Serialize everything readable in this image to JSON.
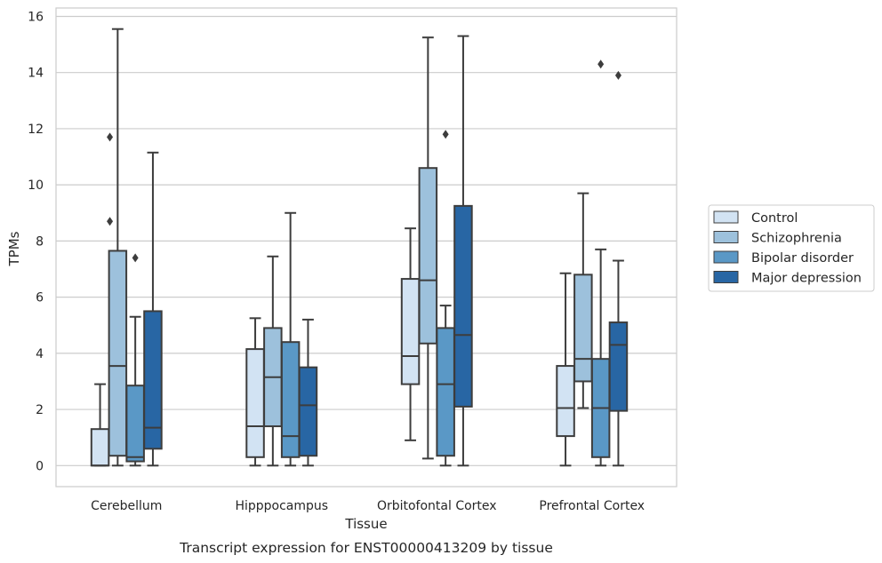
{
  "chart_data": {
    "type": "box",
    "caption": "Transcript expression for ENST00000413209 by tissue",
    "xlabel": "Tissue",
    "ylabel": "TPMs",
    "ylim": [
      -0.75,
      16.3
    ],
    "yticks": [
      0,
      2,
      4,
      6,
      8,
      10,
      12,
      14,
      16
    ],
    "grid": true,
    "legend_position": "right",
    "categories": [
      "Cerebellum",
      "Hipppocampus",
      "Orbitofontal Cortex",
      "Prefrontal Cortex"
    ],
    "series": [
      {
        "name": "Control",
        "color": "#d2e3f3",
        "boxes": [
          {
            "whisker_low": 0,
            "q1": 0,
            "median": 0,
            "q3": 1.3,
            "whisker_high": 2.9,
            "outliers": []
          },
          {
            "whisker_low": 0,
            "q1": 0.3,
            "median": 1.4,
            "q3": 4.15,
            "whisker_high": 5.25,
            "outliers": []
          },
          {
            "whisker_low": 0.9,
            "q1": 2.9,
            "median": 3.9,
            "q3": 6.65,
            "whisker_high": 8.45,
            "outliers": []
          },
          {
            "whisker_low": 0,
            "q1": 1.05,
            "median": 2.05,
            "q3": 3.55,
            "whisker_high": 6.85,
            "outliers": []
          }
        ]
      },
      {
        "name": "Schizophrenia",
        "color": "#9dc1dc",
        "boxes": [
          {
            "whisker_low": 0,
            "q1": 0.35,
            "median": 3.55,
            "q3": 7.65,
            "whisker_high": 15.55,
            "outliers": []
          },
          {
            "whisker_low": 0,
            "q1": 1.4,
            "median": 3.15,
            "q3": 4.9,
            "whisker_high": 7.45,
            "outliers": []
          },
          {
            "whisker_low": 0.25,
            "q1": 4.35,
            "median": 6.6,
            "q3": 10.6,
            "whisker_high": 15.25,
            "outliers": []
          },
          {
            "whisker_low": 2.05,
            "q1": 3.0,
            "median": 3.8,
            "q3": 6.8,
            "whisker_high": 9.7,
            "outliers": []
          }
        ]
      },
      {
        "name": "Bipolar disorder",
        "color": "#5a98c6",
        "boxes": [
          {
            "whisker_low": 0,
            "q1": 0.15,
            "median": 0.3,
            "q3": 2.85,
            "whisker_high": 5.3,
            "outliers": [
              7.4
            ]
          },
          {
            "whisker_low": 0,
            "q1": 0.3,
            "median": 1.05,
            "q3": 4.4,
            "whisker_high": 9.0,
            "outliers": []
          },
          {
            "whisker_low": 0,
            "q1": 0.35,
            "median": 2.9,
            "q3": 4.9,
            "whisker_high": 5.7,
            "outliers": [
              11.8
            ]
          },
          {
            "whisker_low": 0,
            "q1": 0.3,
            "median": 2.05,
            "q3": 3.8,
            "whisker_high": 7.7,
            "outliers": [
              14.3
            ]
          }
        ]
      },
      {
        "name": "Major depression",
        "color": "#2866a4",
        "boxes": [
          {
            "whisker_low": 0,
            "q1": 0.6,
            "median": 1.35,
            "q3": 5.5,
            "whisker_high": 11.15,
            "outliers": []
          },
          {
            "whisker_low": 0,
            "q1": 0.35,
            "median": 2.15,
            "q3": 3.5,
            "whisker_high": 5.2,
            "outliers": []
          },
          {
            "whisker_low": 0,
            "q1": 2.1,
            "median": 4.65,
            "q3": 9.25,
            "whisker_high": 15.3,
            "outliers": []
          },
          {
            "whisker_low": 0,
            "q1": 1.95,
            "median": 4.3,
            "q3": 5.1,
            "whisker_high": 7.3,
            "outliers": [
              13.9
            ]
          }
        ]
      }
    ],
    "extra_outliers": [
      {
        "category": "Cerebellum",
        "series": "Control",
        "values": [
          11.7,
          8.7
        ]
      }
    ]
  }
}
